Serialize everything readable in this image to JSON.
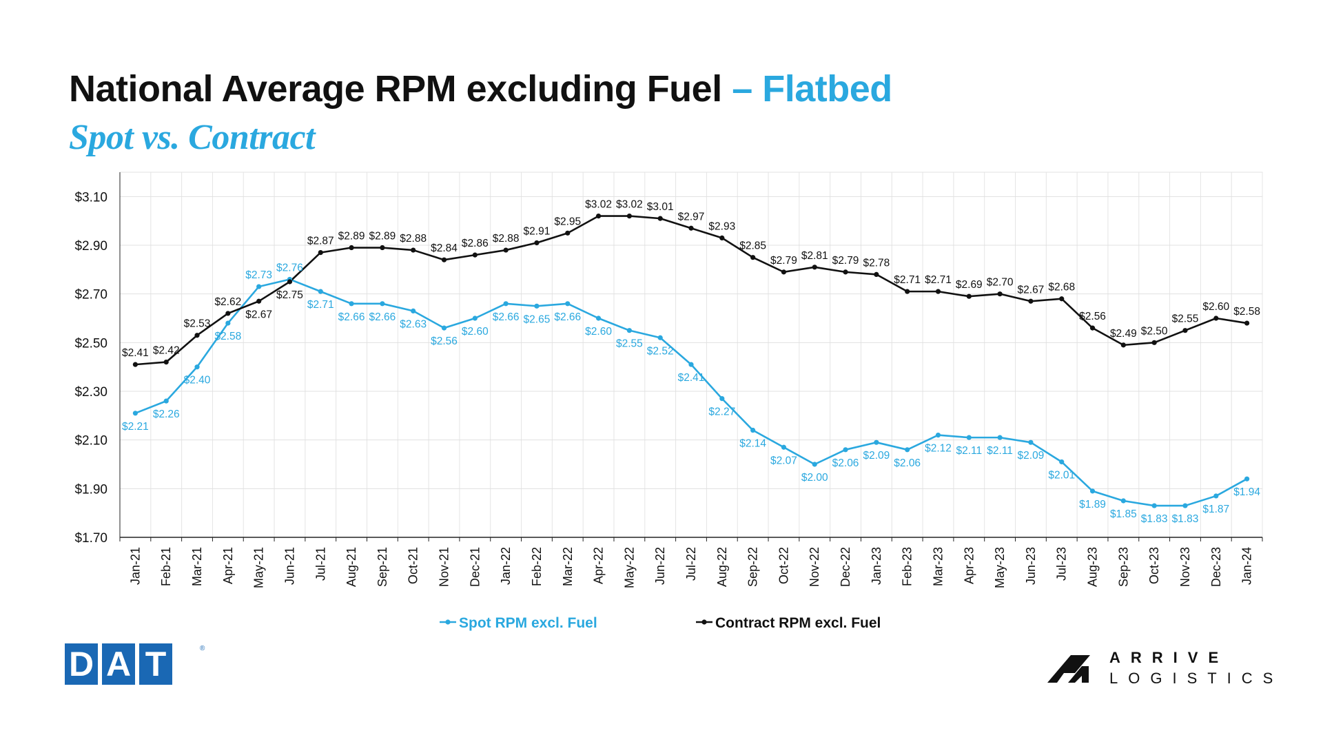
{
  "header": {
    "title": "National Average RPM excluding Fuel",
    "title_accent": " – Flatbed",
    "subtitle": "Spot vs. Contract"
  },
  "logos": {
    "dat": [
      "D",
      "A",
      "T"
    ],
    "dat_reg": "®",
    "arrive_line1": "ARRIVE",
    "arrive_line2": "LOGISTICS"
  },
  "colors": {
    "spot": "#2aa8df",
    "contract": "#111111",
    "accent": "#2aa8df",
    "dat_blue": "#1a68b4"
  },
  "chart_data": {
    "type": "line",
    "title": "National Average RPM excluding Fuel – Flatbed",
    "subtitle": "Spot vs. Contract",
    "categories": [
      "Jan-21",
      "Feb-21",
      "Mar-21",
      "Apr-21",
      "May-21",
      "Jun-21",
      "Jul-21",
      "Aug-21",
      "Sep-21",
      "Oct-21",
      "Nov-21",
      "Dec-21",
      "Jan-22",
      "Feb-22",
      "Mar-22",
      "Apr-22",
      "May-22",
      "Jun-22",
      "Jul-22",
      "Aug-22",
      "Sep-22",
      "Oct-22",
      "Nov-22",
      "Dec-22",
      "Jan-23",
      "Feb-23",
      "Mar-23",
      "Apr-23",
      "May-23",
      "Jun-23",
      "Jul-23",
      "Aug-23",
      "Sep-23",
      "Oct-23",
      "Nov-23",
      "Dec-23",
      "Jan-24"
    ],
    "ylim": [
      1.7,
      3.1
    ],
    "yticks": [
      "$1.70",
      "$1.90",
      "$2.10",
      "$2.30",
      "$2.50",
      "$2.70",
      "$2.90",
      "$3.10"
    ],
    "yticks_values": [
      1.7,
      1.9,
      2.1,
      2.3,
      2.5,
      2.7,
      2.9,
      3.1
    ],
    "grid": true,
    "legend_position": "bottom",
    "series": [
      {
        "name": "Spot RPM excl. Fuel",
        "values": [
          2.21,
          2.26,
          2.4,
          2.58,
          2.73,
          2.76,
          2.71,
          2.66,
          2.66,
          2.63,
          2.56,
          2.6,
          2.66,
          2.65,
          2.66,
          2.6,
          2.55,
          2.52,
          2.41,
          2.27,
          2.14,
          2.07,
          2.0,
          2.06,
          2.09,
          2.06,
          2.12,
          2.11,
          2.11,
          2.09,
          2.01,
          1.89,
          1.85,
          1.83,
          1.83,
          1.87,
          1.94
        ],
        "labels": [
          "$2.21",
          "$2.26",
          "$2.40",
          "$2.58",
          "$2.73",
          "$2.76",
          "$2.71",
          "$2.66",
          "$2.66",
          "$2.63",
          "$2.56",
          "$2.60",
          "$2.66",
          "$2.65",
          "$2.66",
          "$2.60",
          "$2.55",
          "$2.52",
          "$2.41",
          "$2.27",
          "$2.14",
          "$2.07",
          "$2.00",
          "$2.06",
          "$2.09",
          "$2.06",
          "$2.12",
          "$2.11",
          "$2.11",
          "$2.09",
          "$2.01",
          "$1.89",
          "$1.85",
          "$1.83",
          "$1.83",
          "$1.87",
          "$1.94"
        ]
      },
      {
        "name": "Contract RPM excl. Fuel",
        "values": [
          2.41,
          2.42,
          2.53,
          2.62,
          2.67,
          2.75,
          2.87,
          2.89,
          2.89,
          2.88,
          2.84,
          2.86,
          2.88,
          2.91,
          2.95,
          3.02,
          3.02,
          3.01,
          2.97,
          2.93,
          2.85,
          2.79,
          2.81,
          2.79,
          2.78,
          2.71,
          2.71,
          2.69,
          2.7,
          2.67,
          2.68,
          2.56,
          2.49,
          2.5,
          2.55,
          2.6,
          2.58
        ],
        "labels": [
          "$2.41",
          "$2.42",
          "$2.53",
          "$2.62",
          "$2.67",
          "$2.75",
          "$2.87",
          "$2.89",
          "$2.89",
          "$2.88",
          "$2.84",
          "$2.86",
          "$2.88",
          "$2.91",
          "$2.95",
          "$3.02",
          "$3.02",
          "$3.01",
          "$2.97",
          "$2.93",
          "$2.85",
          "$2.79",
          "$2.81",
          "$2.79",
          "$2.78",
          "$2.71",
          "$2.71",
          "$2.69",
          "$2.70",
          "$2.67",
          "$2.68",
          "$2.56",
          "$2.49",
          "$2.50",
          "$2.55",
          "$2.60",
          "$2.58"
        ]
      }
    ]
  }
}
